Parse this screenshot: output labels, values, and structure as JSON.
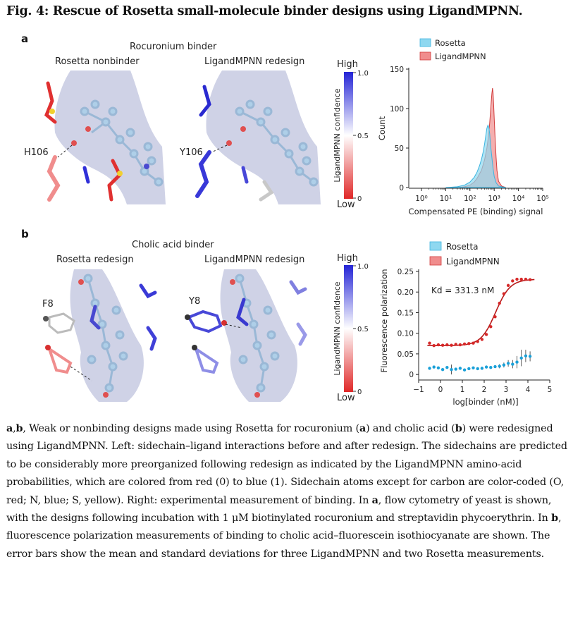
{
  "figure": {
    "title": "Fig. 4: Rescue of Rosetta small-molecule binder designs using LigandMPNN."
  },
  "panel_a": {
    "letter": "a",
    "heading": "Rocuronium binder",
    "left_title": "Rosetta nonbinder",
    "right_title": "LigandMPNN redesign",
    "left_residue": "H106",
    "right_residue": "Y106",
    "colorbar": {
      "high": "High",
      "low": "Low",
      "label": "LigandMPNN confidence",
      "ticks": [
        "1.0",
        "0.5",
        "0"
      ]
    }
  },
  "panel_b": {
    "letter": "b",
    "heading": "Cholic acid binder",
    "left_title": "Rosetta redesign",
    "right_title": "LigandMPNN redesign",
    "left_residue": "F8",
    "right_residue": "Y8",
    "colorbar": {
      "high": "High",
      "low": "Low",
      "label": "LigandMPNN confidence",
      "ticks": [
        "1.0",
        "0.5",
        "0"
      ]
    }
  },
  "colors": {
    "rosetta": "#8fd8f0",
    "ligandmpnn": "#f08d8d",
    "rosetta_edge": "#3cb4e0",
    "ligandmpnn_edge": "#d23c3c",
    "surface": "#c5c8e0"
  },
  "chart_data": [
    {
      "type": "area",
      "legend": [
        "Rosetta",
        "LigandMPNN"
      ],
      "xlabel": "Compensated PE (binding) signal",
      "ylabel": "Count",
      "xscale": "log",
      "xlim": [
        0.3,
        100000
      ],
      "ylim": [
        0,
        150
      ],
      "yticks": [
        0,
        50,
        100,
        150
      ],
      "xtick_labels": [
        "10⁰",
        "10¹",
        "10²",
        "10³",
        "10⁴",
        "10⁵"
      ],
      "series": [
        {
          "name": "Rosetta",
          "x": [
            10,
            30,
            60,
            100,
            150,
            200,
            250,
            300,
            350,
            400,
            450,
            500,
            550,
            600,
            650,
            700,
            800,
            900,
            1000,
            1200,
            1500,
            2000,
            3000
          ],
          "y": [
            0,
            1,
            3,
            7,
            13,
            20,
            28,
            36,
            45,
            55,
            66,
            75,
            79,
            76,
            68,
            55,
            38,
            24,
            14,
            6,
            2,
            1,
            0
          ]
        },
        {
          "name": "LigandMPNN",
          "x": [
            30,
            60,
            100,
            150,
            200,
            300,
            400,
            500,
            550,
            600,
            650,
            700,
            750,
            800,
            850,
            900,
            950,
            1000,
            1100,
            1200,
            1300,
            1500,
            2000,
            3000
          ],
          "y": [
            0,
            1,
            3,
            7,
            12,
            22,
            35,
            50,
            60,
            70,
            82,
            95,
            108,
            119,
            126,
            120,
            105,
            88,
            60,
            38,
            22,
            8,
            2,
            0
          ]
        }
      ]
    },
    {
      "type": "scatter",
      "legend": [
        "Rosetta",
        "LigandMPNN"
      ],
      "annotation": "Kd = 331.3 nM",
      "xlabel": "log[binder (nM)]",
      "ylabel": "Fluorescence polarization",
      "xlim": [
        -1,
        5
      ],
      "ylim": [
        -0.01,
        0.25
      ],
      "xticks": [
        -1,
        0,
        1,
        2,
        3,
        4,
        5
      ],
      "yticks": [
        0,
        0.05,
        0.1,
        0.15,
        0.2,
        0.25
      ],
      "ytick_labels": [
        "0",
        "0.05",
        "0.10",
        "0.15",
        "0.20",
        "0.25"
      ],
      "fit": {
        "bottom": 0.07,
        "top": 0.231,
        "log_kd": 2.52,
        "hill": 1.3
      },
      "series": [
        {
          "name": "LigandMPNN",
          "x": [
            -0.5,
            -0.3,
            -0.1,
            0.1,
            0.3,
            0.5,
            0.7,
            0.9,
            1.1,
            1.3,
            1.5,
            1.7,
            1.9,
            2.1,
            2.3,
            2.5,
            2.7,
            2.9,
            3.1,
            3.3,
            3.5,
            3.7,
            3.9,
            4.1
          ],
          "y": [
            0.076,
            0.07,
            0.072,
            0.071,
            0.072,
            0.071,
            0.073,
            0.072,
            0.074,
            0.075,
            0.076,
            0.08,
            0.085,
            0.097,
            0.116,
            0.14,
            0.173,
            0.196,
            0.216,
            0.227,
            0.231,
            0.231,
            0.231,
            0.23
          ],
          "err": [
            0.004,
            0.002,
            0.002,
            0.002,
            0.002,
            0.002,
            0.002,
            0.002,
            0.002,
            0.002,
            0.002,
            0.002,
            0.003,
            0.003,
            0.003,
            0.003,
            0.003,
            0.003,
            0.003,
            0.002,
            0.002,
            0.002,
            0.002,
            0.002
          ]
        },
        {
          "name": "Rosetta",
          "x": [
            -0.5,
            -0.3,
            -0.1,
            0.1,
            0.3,
            0.5,
            0.7,
            0.9,
            1.1,
            1.3,
            1.5,
            1.7,
            1.9,
            2.1,
            2.3,
            2.5,
            2.7,
            2.9,
            3.1,
            3.3,
            3.5,
            3.7,
            3.9,
            4.1
          ],
          "y": [
            0.015,
            0.018,
            0.016,
            0.012,
            0.017,
            0.012,
            0.013,
            0.015,
            0.011,
            0.014,
            0.016,
            0.014,
            0.015,
            0.018,
            0.017,
            0.019,
            0.02,
            0.023,
            0.027,
            0.025,
            0.03,
            0.04,
            0.045,
            0.044
          ],
          "err": [
            0.004,
            0.003,
            0.003,
            0.003,
            0.003,
            0.012,
            0.003,
            0.003,
            0.003,
            0.004,
            0.003,
            0.003,
            0.004,
            0.004,
            0.004,
            0.004,
            0.005,
            0.006,
            0.008,
            0.01,
            0.015,
            0.02,
            0.015,
            0.012
          ]
        }
      ]
    }
  ],
  "caption": {
    "lead": ", Weak or nonbinding designs made using Rosetta for rocuronium (",
    "lead2": ") and cholic acid (",
    "lead3": ") were redesigned using LigandMPNN. Left: sidechain–ligand interactions before and after redesign. The sidechains are predicted to be considerably more preorganized following redesign as indicated by the LigandMPNN amino-acid probabilities, which are colored from red (0) to blue (1). Sidechain atoms except for carbon are color-coded (O, red; N, blue; S, yellow). Right: experimental measurement of binding. In ",
    "mid": ", flow cytometry of yeast is shown, with the designs following incubation with 1 μM biotinylated rocuronium and streptavidin phycoerythrin. In ",
    "tail": ", fluorescence polarization measurements of binding to cholic acid–fluorescein isothiocyanate are shown. The error bars show the mean and standard deviations for three LigandMPNN and two Rosetta measurements.",
    "a": "a",
    "b": "b"
  }
}
